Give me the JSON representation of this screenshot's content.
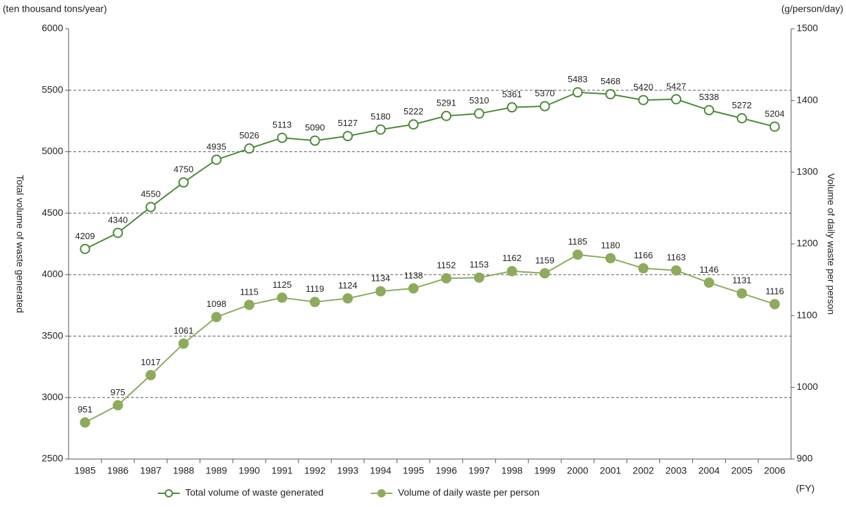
{
  "chart_data": {
    "type": "line",
    "y_unit": "(ten thousand tons/year)",
    "y2_unit": "(g/person/day)",
    "x_unit": "(FY)",
    "ylabel": "Total volume of waste generated",
    "y2label": "Volume of daily waste per person",
    "categories": [
      "1985",
      "1986",
      "1987",
      "1988",
      "1989",
      "1990",
      "1991",
      "1992",
      "1993",
      "1994",
      "1995",
      "1996",
      "1997",
      "1998",
      "1999",
      "2000",
      "2001",
      "2002",
      "2003",
      "2004",
      "2005",
      "2006"
    ],
    "series": [
      {
        "name": "Total volume of waste generated",
        "color": "#4a8a36",
        "marker": "open",
        "axis": "y",
        "values": [
          4209,
          4340,
          4550,
          4750,
          4935,
          5026,
          5113,
          5090,
          5127,
          5180,
          5222,
          5291,
          5310,
          5361,
          5370,
          5483,
          5468,
          5420,
          5427,
          5338,
          5272,
          5204
        ]
      },
      {
        "name": "Volume of daily waste per person",
        "color": "#8cab5c",
        "marker": "filled",
        "axis": "y2",
        "values": [
          951,
          975,
          1017,
          1061,
          1098,
          1115,
          1125,
          1119,
          1124,
          1134,
          1138,
          1152,
          1153,
          1162,
          1159,
          1185,
          1180,
          1166,
          1163,
          1146,
          1131,
          1116
        ]
      }
    ],
    "ylim": [
      2500,
      6000
    ],
    "yticks": [
      2500,
      3000,
      3500,
      4000,
      4500,
      5000,
      5500,
      6000
    ],
    "y2lim": [
      900,
      1500
    ],
    "y2ticks": [
      900,
      1000,
      1100,
      1200,
      1300,
      1400,
      1500
    ],
    "grid": true
  }
}
